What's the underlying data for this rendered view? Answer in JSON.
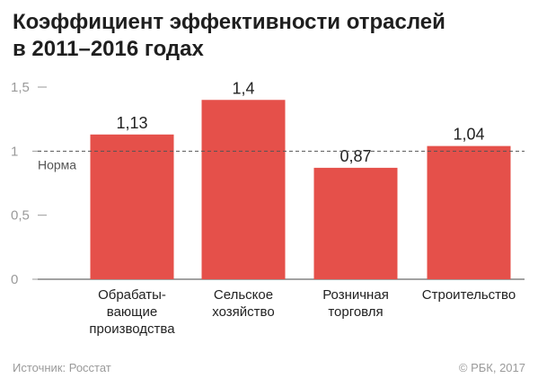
{
  "chart_data": {
    "type": "bar",
    "title_lines": [
      "Коэффициент эффективности отраслей",
      "в 2011–2016 годах"
    ],
    "categories": [
      [
        "Обрабаты-",
        "вающие",
        "производства"
      ],
      [
        "Сельское",
        "хозяйство"
      ],
      [
        "Розничная",
        "торговля"
      ],
      [
        "Строительство"
      ]
    ],
    "values": [
      1.13,
      1.4,
      0.87,
      1.04
    ],
    "value_labels": [
      "1,13",
      "1,4",
      "0,87",
      "1,04"
    ],
    "ylim": [
      0,
      1.5
    ],
    "yticks": [
      {
        "value": 0,
        "label": "0"
      },
      {
        "value": 0.5,
        "label": "0,5"
      },
      {
        "value": 1,
        "label": "1"
      },
      {
        "value": 1.5,
        "label": "1,5"
      }
    ],
    "reference_line": {
      "value": 1,
      "label": "Норма"
    },
    "bar_color": "#e5504a",
    "grid": false,
    "legend": "none"
  },
  "footer": {
    "source": "Источник: Росстат",
    "copyright": "© РБК, 2017"
  }
}
